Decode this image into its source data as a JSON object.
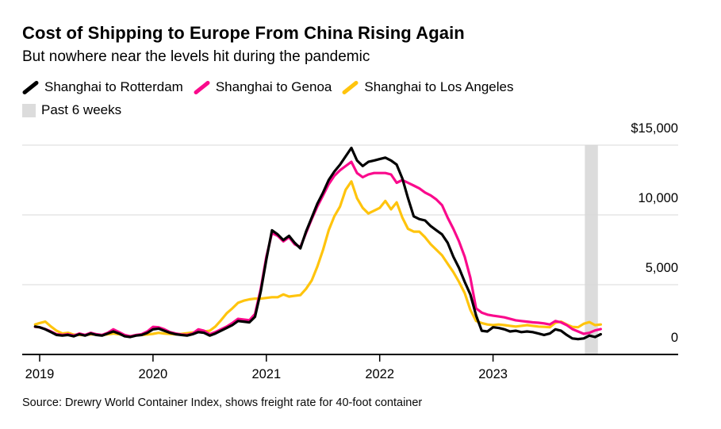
{
  "header": {
    "title": "Cost of Shipping to Europe From China Rising Again",
    "subtitle": "But nowhere near the levels hit during the pandemic"
  },
  "legend": {
    "series": [
      {
        "label": "Shanghai to Rotterdam",
        "color": "#000000"
      },
      {
        "label": "Shanghai to Genoa",
        "color": "#fa0a8c"
      },
      {
        "label": "Shanghai to Los Angeles",
        "color": "#ffc40d"
      }
    ],
    "band": {
      "label": "Past 6 weeks",
      "color": "#dcdcdc"
    }
  },
  "source": "Source: Drewry World Container Index, shows freight rate for 40-foot container",
  "chart_data": {
    "type": "line",
    "unit": "USD, freight rate for 40-foot container",
    "grid": true,
    "legend_position": "top",
    "xlim": [
      2018.96,
      2024.0
    ],
    "ylim": [
      0,
      15000
    ],
    "x_ticks": [
      2019,
      2020,
      2021,
      2022,
      2023
    ],
    "y_ticks": [
      {
        "value": 15000,
        "label": "$15,000"
      },
      {
        "value": 10000,
        "label": "10,000"
      },
      {
        "value": 5000,
        "label": "5,000"
      },
      {
        "value": 0,
        "label": "0"
      }
    ],
    "grid_color": "#d9d9d9",
    "axis_color": "#000000",
    "highlight_band": {
      "label": "Past 6 weeks",
      "x_start": 2023.81,
      "x_end": 2023.925,
      "color": "#dcdcdc"
    },
    "x": [
      2018.96,
      2019,
      2019.05,
      2019.1,
      2019.15,
      2019.2,
      2019.25,
      2019.3,
      2019.35,
      2019.4,
      2019.45,
      2019.5,
      2019.55,
      2019.6,
      2019.65,
      2019.7,
      2019.75,
      2019.8,
      2019.85,
      2019.9,
      2019.95,
      2020,
      2020.05,
      2020.1,
      2020.15,
      2020.2,
      2020.25,
      2020.3,
      2020.35,
      2020.4,
      2020.45,
      2020.5,
      2020.55,
      2020.6,
      2020.65,
      2020.7,
      2020.75,
      2020.8,
      2020.85,
      2020.9,
      2020.95,
      2021,
      2021.05,
      2021.1,
      2021.15,
      2021.2,
      2021.25,
      2021.3,
      2021.35,
      2021.4,
      2021.45,
      2021.5,
      2021.55,
      2021.6,
      2021.65,
      2021.7,
      2021.75,
      2021.8,
      2021.85,
      2021.9,
      2021.95,
      2022,
      2022.05,
      2022.1,
      2022.15,
      2022.2,
      2022.25,
      2022.3,
      2022.35,
      2022.4,
      2022.45,
      2022.5,
      2022.55,
      2022.6,
      2022.65,
      2022.7,
      2022.75,
      2022.8,
      2022.85,
      2022.9,
      2022.95,
      2023,
      2023.05,
      2023.1,
      2023.15,
      2023.2,
      2023.25,
      2023.3,
      2023.35,
      2023.4,
      2023.45,
      2023.5,
      2023.55,
      2023.6,
      2023.65,
      2023.7,
      2023.75,
      2023.8,
      2023.85,
      2023.9,
      2023.95
    ],
    "series": [
      {
        "name": "Shanghai to Rotterdam",
        "color": "#000000",
        "values": [
          2000,
          1950,
          1800,
          1600,
          1400,
          1350,
          1400,
          1300,
          1450,
          1350,
          1500,
          1400,
          1350,
          1500,
          1650,
          1500,
          1300,
          1250,
          1350,
          1400,
          1550,
          1800,
          1850,
          1700,
          1550,
          1450,
          1400,
          1350,
          1450,
          1600,
          1550,
          1350,
          1500,
          1700,
          1900,
          2100,
          2400,
          2350,
          2300,
          2700,
          4500,
          6800,
          8900,
          8600,
          8200,
          8500,
          8000,
          7600,
          8800,
          9800,
          10800,
          11600,
          12500,
          13100,
          13600,
          14200,
          14800,
          13900,
          13500,
          13800,
          13900,
          14000,
          14100,
          13900,
          13600,
          12600,
          11200,
          9900,
          9700,
          9600,
          9200,
          8900,
          8600,
          8000,
          7000,
          6200,
          5200,
          4300,
          2800,
          1700,
          1650,
          1950,
          1900,
          1800,
          1650,
          1700,
          1600,
          1650,
          1600,
          1500,
          1400,
          1500,
          1800,
          1700,
          1400,
          1150,
          1100,
          1150,
          1350,
          1250,
          1450
        ]
      },
      {
        "name": "Shanghai to Genoa",
        "color": "#fa0a8c",
        "values": [
          1980,
          1950,
          1820,
          1650,
          1450,
          1400,
          1450,
          1350,
          1500,
          1400,
          1550,
          1450,
          1400,
          1550,
          1800,
          1600,
          1400,
          1300,
          1400,
          1450,
          1650,
          1980,
          1950,
          1800,
          1600,
          1500,
          1430,
          1400,
          1500,
          1800,
          1700,
          1450,
          1600,
          1800,
          2000,
          2250,
          2550,
          2500,
          2450,
          2900,
          4700,
          7000,
          8700,
          8500,
          8100,
          8400,
          7900,
          7700,
          8700,
          9700,
          10600,
          11400,
          12200,
          12800,
          13200,
          13500,
          13800,
          13000,
          12700,
          12900,
          13000,
          13000,
          13000,
          12900,
          12300,
          12500,
          12300,
          12100,
          11900,
          11600,
          11400,
          11100,
          10700,
          9800,
          9000,
          8100,
          7000,
          5500,
          3300,
          3000,
          2850,
          2780,
          2720,
          2660,
          2550,
          2450,
          2400,
          2350,
          2300,
          2270,
          2230,
          2150,
          2400,
          2300,
          2100,
          1820,
          1650,
          1480,
          1550,
          1720,
          1820
        ]
      },
      {
        "name": "Shanghai to Los Angeles",
        "color": "#ffc40d",
        "values": [
          2150,
          2250,
          2350,
          2000,
          1700,
          1500,
          1550,
          1420,
          1400,
          1380,
          1450,
          1420,
          1380,
          1450,
          1500,
          1450,
          1350,
          1300,
          1380,
          1400,
          1430,
          1480,
          1550,
          1500,
          1470,
          1440,
          1470,
          1520,
          1570,
          1600,
          1650,
          1700,
          2000,
          2450,
          2950,
          3300,
          3700,
          3850,
          3950,
          4000,
          4000,
          4050,
          4100,
          4100,
          4300,
          4150,
          4200,
          4250,
          4700,
          5300,
          6300,
          7500,
          8900,
          9900,
          10600,
          11800,
          12400,
          11200,
          10500,
          10100,
          10300,
          10500,
          11000,
          10400,
          10900,
          9800,
          9000,
          8800,
          8800,
          8400,
          7900,
          7500,
          7100,
          6500,
          5900,
          5200,
          4400,
          3200,
          2400,
          2250,
          2150,
          2100,
          2150,
          2100,
          2050,
          2000,
          2050,
          2100,
          2050,
          2000,
          1980,
          1950,
          2270,
          2350,
          2150,
          1980,
          1950,
          2200,
          2320,
          2100,
          2150
        ]
      }
    ]
  }
}
